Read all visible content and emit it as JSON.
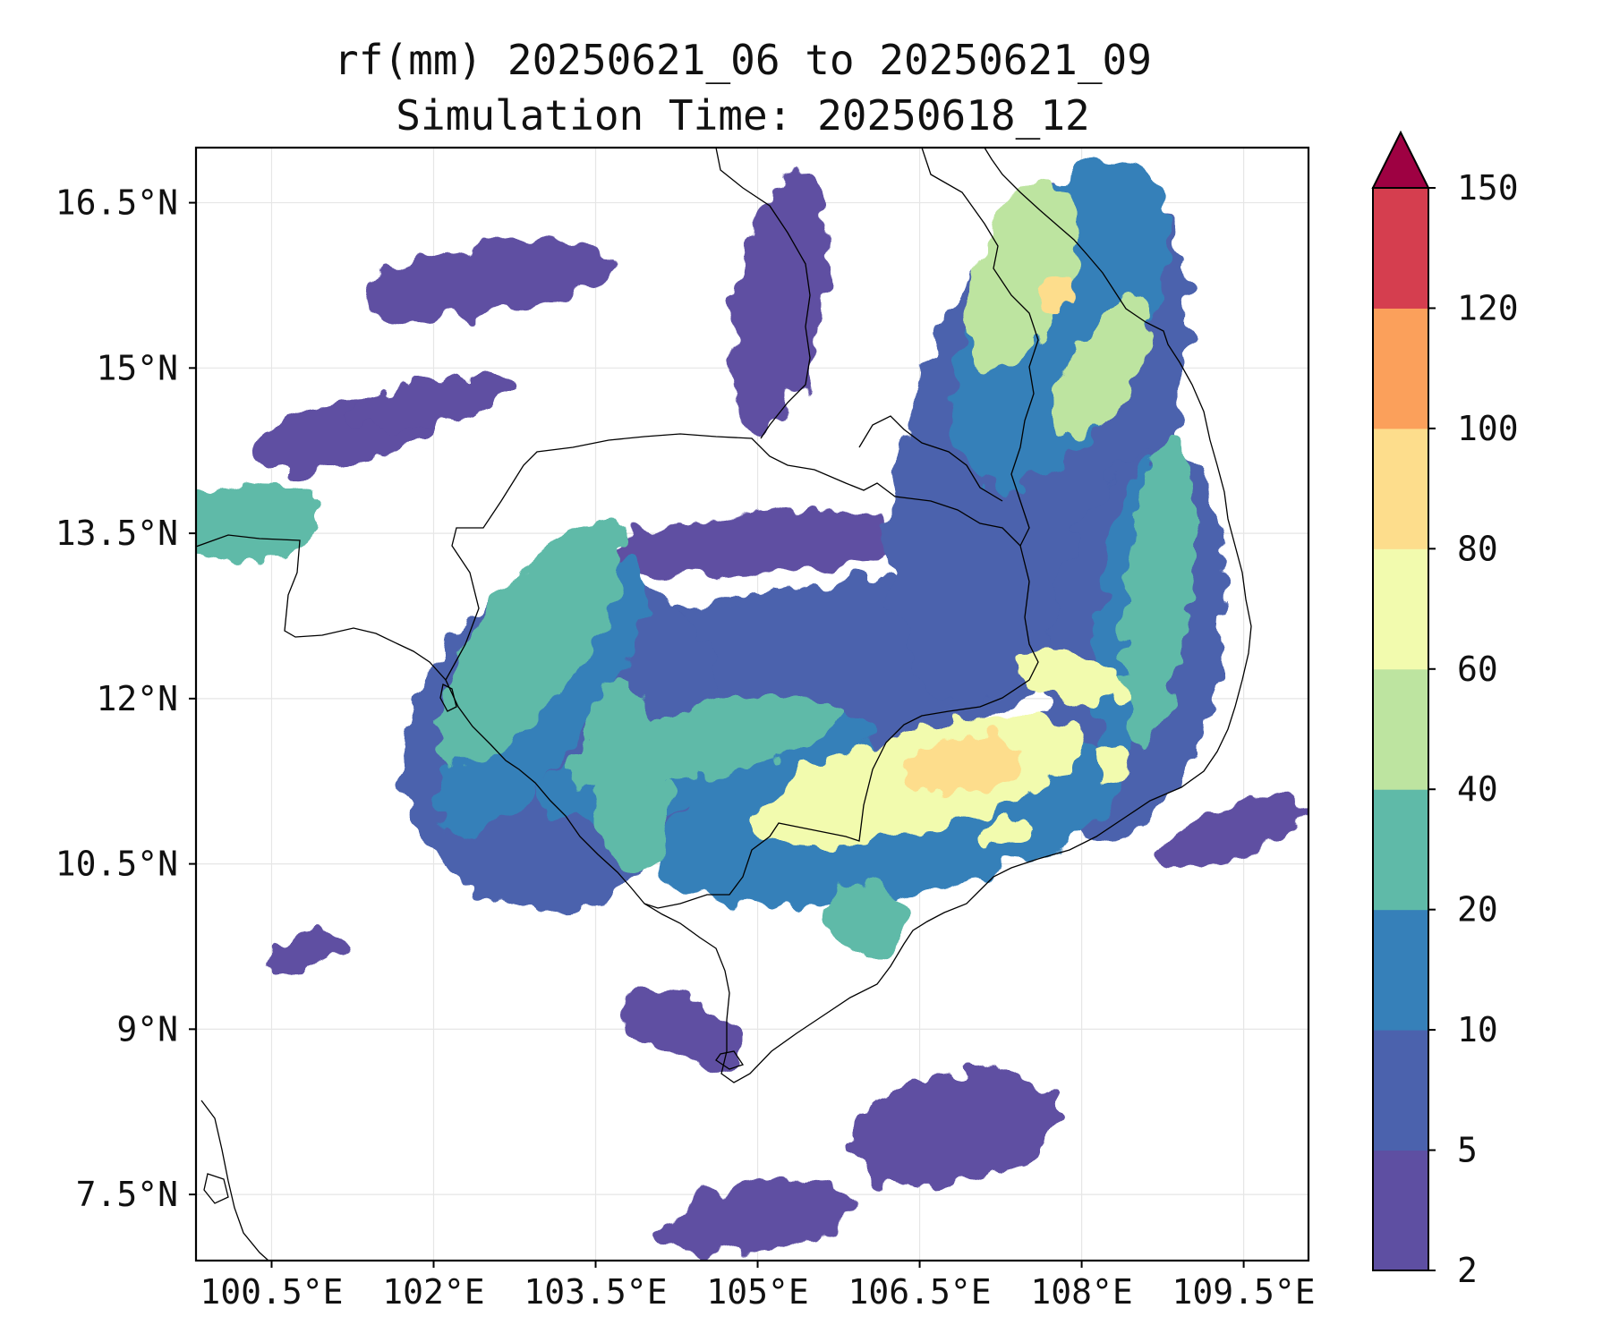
{
  "title": {
    "line1": "rf(mm) 20250621_06 to 20250621_09",
    "line2": "Simulation Time: 20250618_12"
  },
  "map": {
    "projection": "PlateCarree",
    "lon_range": [
      99.8,
      110.1
    ],
    "lat_range": [
      6.9,
      17.0
    ],
    "gridlines": true,
    "variable": "3-hour accumulated rainfall",
    "units": "mm",
    "x_ticks": [
      {
        "value": 100.5,
        "label": "100.5°E"
      },
      {
        "value": 102,
        "label": "102°E"
      },
      {
        "value": 103.5,
        "label": "103.5°E"
      },
      {
        "value": 105,
        "label": "105°E"
      },
      {
        "value": 106.5,
        "label": "106.5°E"
      },
      {
        "value": 108,
        "label": "108°E"
      },
      {
        "value": 109.5,
        "label": "109.5°E"
      }
    ],
    "y_ticks": [
      {
        "value": 16.5,
        "label": "16.5°N"
      },
      {
        "value": 15,
        "label": "15°N"
      },
      {
        "value": 13.5,
        "label": "13.5°N"
      },
      {
        "value": 12,
        "label": "12°N"
      },
      {
        "value": 10.5,
        "label": "10.5°N"
      },
      {
        "value": 9,
        "label": "9°N"
      },
      {
        "value": 7.5,
        "label": "7.5°N"
      }
    ]
  },
  "colorbar": {
    "levels": [
      2,
      5,
      10,
      20,
      40,
      60,
      80,
      100,
      120,
      150
    ],
    "labels": [
      "2",
      "5",
      "10",
      "20",
      "40",
      "60",
      "80",
      "100",
      "120",
      "150"
    ],
    "colors": [
      "#5e4fa2",
      "#4b62ad",
      "#3680b9",
      "#5fbaa8",
      "#bde4a0",
      "#f2fbae",
      "#fddd8c",
      "#fba05b",
      "#d53e4f"
    ],
    "extend_color": "#9e0142",
    "extend": "max"
  },
  "rain_cells": [
    {
      "lon": 106.5,
      "lat": 11.25,
      "rx": 1.6,
      "ry": 0.45,
      "rot": -15,
      "level": 5
    },
    {
      "lon": 106.9,
      "lat": 11.4,
      "rx": 0.55,
      "ry": 0.25,
      "rot": -10,
      "level": 6
    },
    {
      "lon": 107.45,
      "lat": 15.85,
      "rx": 0.45,
      "ry": 0.9,
      "rot": 20,
      "level": 4
    },
    {
      "lon": 107.75,
      "lat": 15.65,
      "rx": 0.18,
      "ry": 0.22,
      "rot": 0,
      "level": 6
    },
    {
      "lon": 108.2,
      "lat": 15.0,
      "rx": 0.3,
      "ry": 0.7,
      "rot": 30,
      "level": 4
    },
    {
      "lon": 107.9,
      "lat": 12.2,
      "rx": 0.55,
      "ry": 0.2,
      "rot": 15,
      "level": 5
    },
    {
      "lon": 108.3,
      "lat": 11.4,
      "rx": 0.12,
      "ry": 0.18,
      "rot": 0,
      "level": 5
    },
    {
      "lon": 102.9,
      "lat": 12.5,
      "rx": 0.5,
      "ry": 1.3,
      "rot": 35,
      "level": 3
    },
    {
      "lon": 103.8,
      "lat": 11.3,
      "rx": 0.35,
      "ry": 0.9,
      "rot": -10,
      "level": 3
    },
    {
      "lon": 100.3,
      "lat": 13.6,
      "rx": 0.7,
      "ry": 0.35,
      "rot": -5,
      "level": 3
    },
    {
      "lon": 107.3,
      "lat": 10.8,
      "rx": 0.25,
      "ry": 0.12,
      "rot": 0,
      "level": 5
    },
    {
      "lon": 106.0,
      "lat": 10.0,
      "rx": 0.4,
      "ry": 0.3,
      "rot": 20,
      "level": 3
    },
    {
      "lon": 108.7,
      "lat": 13.0,
      "rx": 0.3,
      "ry": 1.4,
      "rot": 5,
      "level": 3
    },
    {
      "lon": 104.5,
      "lat": 11.6,
      "rx": 1.3,
      "ry": 0.3,
      "rot": -12,
      "level": 3
    }
  ],
  "rain_bands": [
    {
      "lon": 104.8,
      "lat": 12.0,
      "rx": 3.2,
      "ry": 0.9,
      "rot": -12,
      "level": 1
    },
    {
      "lon": 107.6,
      "lat": 14.4,
      "rx": 1.2,
      "ry": 2.5,
      "rot": 18,
      "level": 1
    },
    {
      "lon": 103.2,
      "lat": 11.6,
      "rx": 1.4,
      "ry": 1.6,
      "rot": 35,
      "level": 1
    },
    {
      "lon": 108.5,
      "lat": 12.5,
      "rx": 0.8,
      "ry": 1.8,
      "rot": 10,
      "level": 1
    },
    {
      "lon": 106.2,
      "lat": 10.9,
      "rx": 2.2,
      "ry": 0.7,
      "rot": -10,
      "level": 2
    },
    {
      "lon": 107.8,
      "lat": 15.4,
      "rx": 0.8,
      "ry": 1.6,
      "rot": 25,
      "level": 2
    },
    {
      "lon": 103.0,
      "lat": 12.0,
      "rx": 0.5,
      "ry": 1.5,
      "rot": 35,
      "level": 2
    },
    {
      "lon": 108.5,
      "lat": 12.8,
      "rx": 0.35,
      "ry": 1.4,
      "rot": 8,
      "level": 2
    },
    {
      "lon": 104.5,
      "lat": 11.4,
      "rx": 1.6,
      "ry": 0.4,
      "rot": -12,
      "level": 2
    },
    {
      "lon": 106.8,
      "lat": 8.1,
      "rx": 1.0,
      "ry": 0.5,
      "rot": -10,
      "level": 0
    },
    {
      "lon": 105.0,
      "lat": 7.3,
      "rx": 0.9,
      "ry": 0.3,
      "rot": -10,
      "level": 0
    },
    {
      "lon": 102.5,
      "lat": 15.8,
      "rx": 1.2,
      "ry": 0.3,
      "rot": -8,
      "level": 0
    },
    {
      "lon": 101.2,
      "lat": 14.4,
      "rx": 0.9,
      "ry": 0.3,
      "rot": -12,
      "level": 0
    },
    {
      "lon": 105.0,
      "lat": 13.4,
      "rx": 1.4,
      "ry": 0.3,
      "rot": -4,
      "level": 0
    },
    {
      "lon": 102.0,
      "lat": 14.7,
      "rx": 0.8,
      "ry": 0.2,
      "rot": -10,
      "level": 0
    },
    {
      "lon": 109.4,
      "lat": 10.8,
      "rx": 0.7,
      "ry": 0.25,
      "rot": -20,
      "level": 0
    },
    {
      "lon": 105.2,
      "lat": 15.6,
      "rx": 0.4,
      "ry": 1.2,
      "rot": 10,
      "level": 0
    },
    {
      "lon": 100.8,
      "lat": 9.7,
      "rx": 0.4,
      "ry": 0.15,
      "rot": -25,
      "level": 0
    },
    {
      "lon": 104.3,
      "lat": 9.0,
      "rx": 0.6,
      "ry": 0.3,
      "rot": 30,
      "level": 0
    },
    {
      "lon": 102.6,
      "lat": 10.5,
      "rx": 0.4,
      "ry": 0.2,
      "rot": -10,
      "level": 0
    }
  ]
}
